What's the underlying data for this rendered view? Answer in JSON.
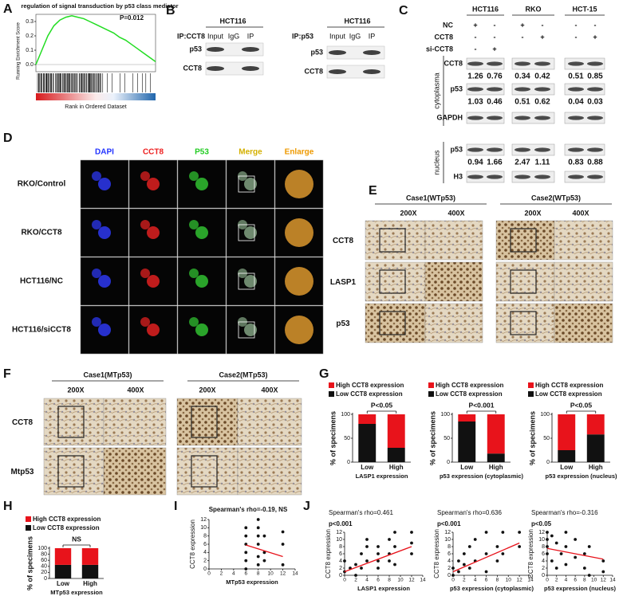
{
  "panel_labels": [
    "A",
    "B",
    "C",
    "D",
    "E",
    "F",
    "G",
    "H",
    "I",
    "J"
  ],
  "blot_b": [
    {
      "cell": "HCT116",
      "ip": "IP:CCT8",
      "lanes": [
        "Input",
        "IgG",
        "IP"
      ],
      "rows": [
        "p53",
        "CCT8"
      ]
    },
    {
      "cell": "HCT116",
      "ip": "IP:p53",
      "lanes": [
        "Input",
        "IgG",
        "IP"
      ],
      "rows": [
        "p53",
        "CCT8"
      ]
    }
  ],
  "blot_c": {
    "cell_lines": [
      "HCT116",
      "RKO",
      "HCT-15"
    ],
    "conditions": [
      {
        "label": "NC",
        "signs": [
          "+",
          "-",
          "+",
          "-",
          "-",
          "-"
        ]
      },
      {
        "label": "CCT8",
        "signs": [
          "-",
          "-",
          "-",
          "+",
          "-",
          "+"
        ]
      },
      {
        "label": "si-CCT8",
        "signs": [
          "-",
          "+"
        ]
      }
    ],
    "sections": [
      "cytoplasma",
      "nucleus"
    ],
    "rows": [
      {
        "label": "CCT8",
        "quant": [
          1.26,
          0.76,
          0.34,
          0.42,
          0.51,
          0.85
        ]
      },
      {
        "label": "p53",
        "quant": [
          1.03,
          0.46,
          0.51,
          0.62,
          0.04,
          0.03
        ]
      },
      {
        "label": "GAPDH"
      },
      {
        "label": "p53",
        "quant": [
          0.94,
          1.66,
          2.47,
          1.11,
          0.83,
          0.88
        ]
      },
      {
        "label": "H3"
      }
    ]
  },
  "panel_d": {
    "columns": [
      "DAPI",
      "CCT8",
      "P53",
      "Merge",
      "Enlarge"
    ],
    "rows": [
      "RKO/Control",
      "RKO/CCT8",
      "HCT116/NC",
      "HCT116/siCCT8"
    ]
  },
  "panel_e": {
    "cases": [
      "Case1(WTp53)",
      "Case2(WTp53)"
    ],
    "magnifications": [
      "200X",
      "400X",
      "200X",
      "400X"
    ],
    "rows": [
      "CCT8",
      "LASP1",
      "p53"
    ]
  },
  "panel_f": {
    "cases": [
      "Case1(MTp53)",
      "Case2(MTp53)"
    ],
    "magnifications": [
      "200X",
      "400X",
      "200X",
      "400X"
    ],
    "rows": [
      "CCT8",
      "Mtp53"
    ]
  },
  "chart_data": [
    {
      "type": "line",
      "title": "regulation of signal transduction by p53 class mediator",
      "annotation": "P=0.012",
      "y_label": "Running Enrichment Score",
      "x_label": "Rank in Ordered Dataset",
      "x": [
        0,
        5,
        10,
        15,
        20,
        25,
        30,
        35,
        40,
        45,
        50,
        55,
        60,
        65,
        70,
        75,
        80,
        85,
        90,
        95,
        100
      ],
      "values": [
        0,
        0.1,
        0.2,
        0.27,
        0.31,
        0.33,
        0.34,
        0.33,
        0.32,
        0.3,
        0.28,
        0.26,
        0.24,
        0.22,
        0.19,
        0.17,
        0.14,
        0.11,
        0.08,
        0.05,
        0.02
      ],
      "color": "#22dd22",
      "xlim": [
        0,
        100
      ],
      "ylim": [
        -0.05,
        0.35
      ],
      "yticks": [
        {
          "value": 0,
          "label": "0.0"
        },
        0.1,
        0.2,
        0.3
      ]
    },
    {
      "type": "stacked_bar",
      "annotation": "P<0.05",
      "y_label": "% of specimens",
      "x_label": "LASP1 expression",
      "categories": [
        "Low",
        "High"
      ],
      "ylim": [
        0,
        100
      ],
      "yticks": [
        0,
        50,
        100
      ],
      "series": [
        {
          "name": "Low CCT8 expression",
          "color": "#111111",
          "values": [
            80,
            30
          ]
        },
        {
          "name": "High CCT8 expression",
          "color": "#e8131b",
          "values": [
            20,
            70
          ]
        }
      ]
    },
    {
      "type": "stacked_bar",
      "annotation": "P<0.001",
      "y_label": "% of specimens",
      "x_label": "p53 expression (cytoplasmic)",
      "categories": [
        "Low",
        "High"
      ],
      "ylim": [
        0,
        100
      ],
      "yticks": [
        0,
        50,
        100
      ],
      "series": [
        {
          "name": "Low CCT8 expression",
          "color": "#111111",
          "values": [
            85,
            18
          ]
        },
        {
          "name": "High CCT8 expression",
          "color": "#e8131b",
          "values": [
            15,
            82
          ]
        }
      ]
    },
    {
      "type": "stacked_bar",
      "annotation": "P<0.05",
      "y_label": "% of specimens",
      "x_label": "p53 expression (nucleus)",
      "categories": [
        "Low",
        "High"
      ],
      "ylim": [
        0,
        100
      ],
      "yticks": [
        0,
        50,
        100
      ],
      "series": [
        {
          "name": "Low CCT8 expression",
          "color": "#111111",
          "values": [
            25,
            58
          ]
        },
        {
          "name": "High CCT8 expression",
          "color": "#e8131b",
          "values": [
            75,
            42
          ]
        }
      ]
    },
    {
      "type": "stacked_bar",
      "annotation": "NS",
      "y_label": "% of specimens",
      "x_label": "MTp53 expression",
      "categories": [
        "Low",
        "High"
      ],
      "ylim": [
        0,
        100
      ],
      "yticks": [
        0,
        20,
        40,
        60,
        80,
        100
      ],
      "series": [
        {
          "name": "Low CCT8 expression",
          "color": "#111111",
          "values": [
            45,
            45
          ]
        },
        {
          "name": "High CCT8 expression",
          "color": "#e8131b",
          "values": [
            55,
            55
          ]
        }
      ]
    },
    {
      "type": "scatter",
      "title": "Spearman's rho=-0.19, NS",
      "x_label": "MTp53 expression",
      "y_label": "CCT8 expression",
      "x": [
        6,
        6,
        6,
        6,
        6,
        6,
        8,
        8,
        8,
        8,
        8,
        8,
        9,
        9,
        9,
        12,
        12,
        12
      ],
      "values": [
        0,
        2,
        4,
        6,
        8,
        10,
        1,
        3,
        6,
        8,
        10,
        12,
        2,
        4,
        8,
        1,
        6,
        9
      ],
      "color": "#111111",
      "trend": {
        "x": [
          6,
          12
        ],
        "y": [
          5.8,
          3
        ]
      },
      "trend_color": "#e8131b",
      "xlim": [
        0,
        14
      ],
      "xticks": [
        0,
        2,
        4,
        6,
        8,
        10,
        12,
        14
      ],
      "ylim": [
        0,
        12
      ],
      "yticks": [
        0,
        2,
        4,
        6,
        8,
        10,
        12
      ]
    },
    {
      "type": "scatter",
      "title": "Spearman's rho=0.461",
      "subtitle": "p<0.001",
      "x_label": "LASP1 expression",
      "y_label": "CCT8 expression",
      "x": [
        0,
        0,
        1,
        2,
        2,
        3,
        3,
        4,
        4,
        4,
        6,
        6,
        6,
        6,
        8,
        8,
        8,
        9,
        9,
        9,
        12,
        12,
        12
      ],
      "values": [
        1,
        4,
        2,
        0,
        3,
        2,
        6,
        4,
        8,
        10,
        2,
        4,
        6,
        8,
        4,
        6,
        10,
        3,
        8,
        12,
        6,
        9,
        12
      ],
      "color": "#111111",
      "trend": {
        "x": [
          0,
          12
        ],
        "y": [
          1,
          8
        ]
      },
      "trend_color": "#e8131b",
      "xlim": [
        0,
        14
      ],
      "xticks": [
        0,
        2,
        4,
        6,
        8,
        10,
        12,
        14
      ],
      "ylim": [
        0,
        12
      ],
      "yticks": [
        0,
        2,
        4,
        6,
        8,
        10,
        12
      ]
    },
    {
      "type": "scatter",
      "title": "Spearman's rho=0.636",
      "subtitle": "p<0.001",
      "x_label": "p53 expression (cytoplasmic)",
      "y_label": "CCT8 expression",
      "x": [
        0,
        0,
        1,
        1,
        2,
        2,
        3,
        3,
        4,
        4,
        6,
        6,
        6,
        8,
        8,
        9,
        9,
        12,
        12
      ],
      "values": [
        0,
        2,
        1,
        4,
        3,
        6,
        2,
        8,
        4,
        10,
        1,
        6,
        12,
        4,
        8,
        6,
        12,
        8,
        12
      ],
      "color": "#111111",
      "trend": {
        "x": [
          0,
          12
        ],
        "y": [
          1,
          9
        ]
      },
      "trend_color": "#e8131b",
      "xlim": [
        0,
        14
      ],
      "xticks": [
        0,
        2,
        4,
        6,
        8,
        10,
        12,
        14
      ],
      "ylim": [
        0,
        12
      ],
      "yticks": [
        0,
        2,
        4,
        6,
        8,
        10,
        12
      ]
    },
    {
      "type": "scatter",
      "title": "Spearman's rho=-0.316",
      "subtitle": "p<0.05",
      "x_label": "p53 expression (nucleus)",
      "y_label": "CCT8 expression",
      "x": [
        0,
        0,
        0,
        0,
        1,
        1,
        2,
        2,
        3,
        4,
        4,
        4,
        6,
        6,
        8,
        8,
        9,
        9,
        12,
        12
      ],
      "values": [
        12,
        10,
        8,
        6,
        11,
        4,
        9,
        2,
        6,
        12,
        8,
        3,
        10,
        5,
        6,
        2,
        8,
        0,
        4,
        1
      ],
      "color": "#111111",
      "trend": {
        "x": [
          0,
          12
        ],
        "y": [
          7.5,
          4.5
        ]
      },
      "trend_color": "#e8131b",
      "xlim": [
        0,
        14
      ],
      "xticks": [
        0,
        2,
        4,
        6,
        8,
        10,
        12,
        14
      ],
      "ylim": [
        0,
        12
      ],
      "yticks": [
        0,
        2,
        4,
        6,
        8,
        10,
        12
      ]
    }
  ]
}
